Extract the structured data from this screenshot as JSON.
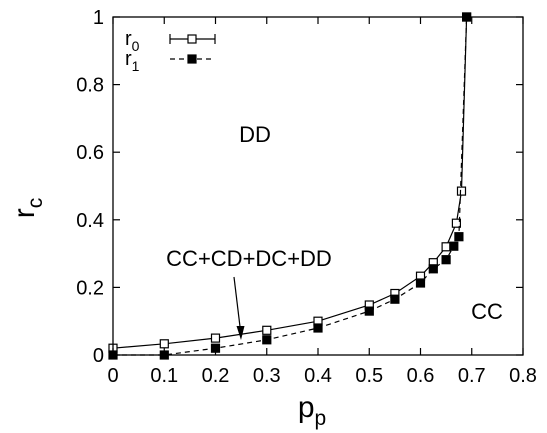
{
  "chart_data": {
    "type": "line",
    "xlabel": "p",
    "xlabel_sub": "p",
    "ylabel": "r",
    "ylabel_sub": "c",
    "xlim": [
      0,
      0.8
    ],
    "ylim": [
      0,
      1
    ],
    "x_ticks": [
      "0",
      "0.1",
      "0.2",
      "0.3",
      "0.4",
      "0.5",
      "0.6",
      "0.7",
      "0.8"
    ],
    "y_ticks": [
      "0",
      "0.2",
      "0.4",
      "0.6",
      "0.8",
      "1"
    ],
    "grid": false,
    "legend_position": "top-left",
    "series": [
      {
        "name": "r",
        "name_sub": "0",
        "marker": "open-square",
        "line": "solid",
        "color": "#000000",
        "points": [
          [
            0,
            0.02
          ],
          [
            0.1,
            0.033
          ],
          [
            0.2,
            0.05
          ],
          [
            0.3,
            0.073
          ],
          [
            0.4,
            0.1
          ],
          [
            0.5,
            0.148
          ],
          [
            0.55,
            0.182
          ],
          [
            0.6,
            0.233
          ],
          [
            0.625,
            0.273
          ],
          [
            0.65,
            0.32
          ],
          [
            0.67,
            0.39
          ],
          [
            0.68,
            0.485
          ],
          [
            0.69,
            1.0
          ]
        ]
      },
      {
        "name": "r",
        "name_sub": "1",
        "marker": "filled-square",
        "line": "dashed",
        "color": "#000000",
        "points": [
          [
            0,
            0.0
          ],
          [
            0.1,
            0.0
          ],
          [
            0.2,
            0.02
          ],
          [
            0.3,
            0.045
          ],
          [
            0.4,
            0.08
          ],
          [
            0.5,
            0.13
          ],
          [
            0.55,
            0.165
          ],
          [
            0.6,
            0.213
          ],
          [
            0.625,
            0.255
          ],
          [
            0.65,
            0.282
          ],
          [
            0.665,
            0.322
          ],
          [
            0.675,
            0.35
          ],
          [
            0.69,
            1.0
          ]
        ]
      }
    ],
    "annotations": [
      {
        "text": "DD",
        "x": 0.25,
        "y": 0.66
      },
      {
        "text": "CC",
        "x": 0.74,
        "y": 0.13
      },
      {
        "text": "CC+CD+DC+DD",
        "x": 0.25,
        "y": 0.27,
        "arrow_to": [
          0.245,
          0.055
        ]
      }
    ]
  }
}
